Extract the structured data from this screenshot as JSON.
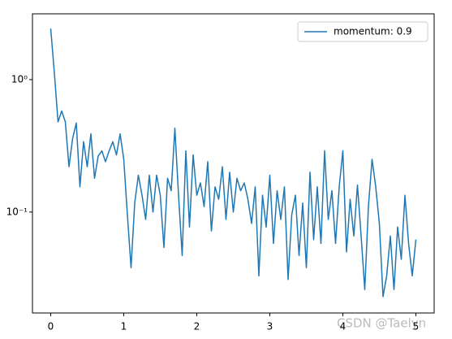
{
  "chart_data": {
    "type": "line",
    "x": [
      0,
      0.05,
      0.1,
      0.15,
      0.2,
      0.25,
      0.3,
      0.35,
      0.4,
      0.45,
      0.5,
      0.55,
      0.6,
      0.65,
      0.7,
      0.75,
      0.8,
      0.85,
      0.9,
      0.95,
      1,
      1.05,
      1.1,
      1.15,
      1.2,
      1.25,
      1.3,
      1.35,
      1.4,
      1.45,
      1.5,
      1.55,
      1.6,
      1.65,
      1.7,
      1.75,
      1.8,
      1.85,
      1.9,
      1.95,
      2,
      2.05,
      2.1,
      2.15,
      2.2,
      2.25,
      2.3,
      2.35,
      2.4,
      2.45,
      2.5,
      2.55,
      2.6,
      2.65,
      2.7,
      2.75,
      2.8,
      2.85,
      2.9,
      2.95,
      3,
      3.05,
      3.1,
      3.15,
      3.2,
      3.25,
      3.3,
      3.35,
      3.4,
      3.45,
      3.5,
      3.55,
      3.6,
      3.65,
      3.7,
      3.75,
      3.8,
      3.85,
      3.9,
      3.95,
      4,
      4.05,
      4.1,
      4.15,
      4.2,
      4.25,
      4.3,
      4.35,
      4.4,
      4.45,
      4.5,
      4.55,
      4.6,
      4.65,
      4.7,
      4.75,
      4.8,
      4.85,
      4.9,
      4.95,
      5
    ],
    "series": [
      {
        "name": "momentum: 0.9",
        "color": "#1f77b4",
        "values": [
          2.43,
          1.12,
          0.48,
          0.58,
          0.48,
          0.22,
          0.36,
          0.47,
          0.155,
          0.34,
          0.22,
          0.39,
          0.18,
          0.265,
          0.29,
          0.24,
          0.29,
          0.34,
          0.27,
          0.39,
          0.25,
          0.095,
          0.038,
          0.117,
          0.19,
          0.134,
          0.088,
          0.19,
          0.1,
          0.19,
          0.134,
          0.054,
          0.18,
          0.145,
          0.43,
          0.134,
          0.047,
          0.29,
          0.077,
          0.27,
          0.134,
          0.166,
          0.11,
          0.24,
          0.072,
          0.155,
          0.125,
          0.22,
          0.088,
          0.2,
          0.1,
          0.18,
          0.145,
          0.166,
          0.125,
          0.082,
          0.155,
          0.033,
          0.134,
          0.077,
          0.19,
          0.058,
          0.145,
          0.088,
          0.155,
          0.031,
          0.095,
          0.134,
          0.047,
          0.117,
          0.038,
          0.2,
          0.062,
          0.155,
          0.058,
          0.29,
          0.088,
          0.145,
          0.058,
          0.155,
          0.29,
          0.05,
          0.125,
          0.066,
          0.16,
          0.066,
          0.026,
          0.11,
          0.25,
          0.155,
          0.082,
          0.023,
          0.033,
          0.066,
          0.026,
          0.077,
          0.044,
          0.134,
          0.058,
          0.033,
          0.062
        ]
      }
    ],
    "xlim": [
      -0.25,
      5.25
    ],
    "xticks": [
      0,
      1,
      2,
      3,
      4,
      5
    ],
    "ylim": [
      0.0173,
      3.14
    ],
    "yticks": [
      {
        "value": 1,
        "label": "10⁰"
      },
      {
        "value": 0.1,
        "label": "10⁻¹"
      }
    ],
    "log_y": true,
    "grid": false,
    "legend": "upper right",
    "watermark": "CSDN @Taelyn"
  }
}
